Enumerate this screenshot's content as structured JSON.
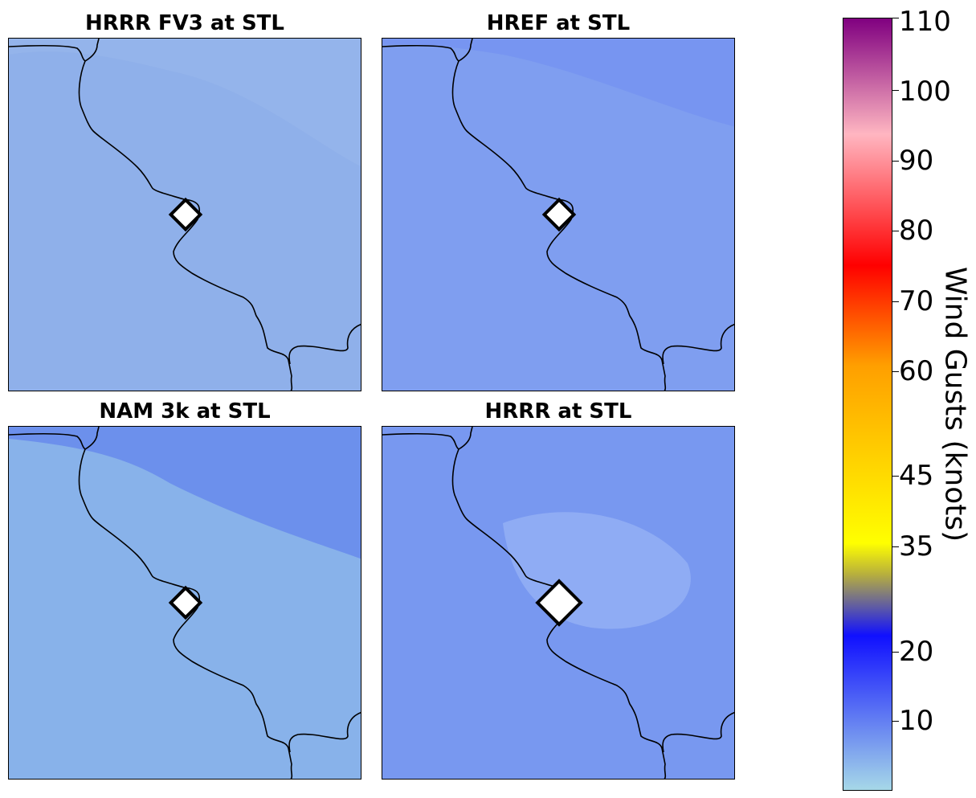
{
  "panels": [
    {
      "title": "HRRR FV3 at STL",
      "base_color": "#8fb0ea",
      "marker_size": "small"
    },
    {
      "title": "HREF at STL",
      "base_color": "#7f9ef0",
      "marker_size": "small"
    },
    {
      "title": "NAM 3k at STL",
      "base_color": "#88b2ea",
      "marker_size": "small"
    },
    {
      "title": "HRRR at STL",
      "base_color": "#7898f0",
      "marker_size": "large"
    }
  ],
  "colorbar": {
    "label": "Wind Gusts (knots)",
    "ticks": [
      "110",
      "100",
      "90",
      "80",
      "70",
      "60",
      "45",
      "35",
      "20",
      "10"
    ],
    "range": [
      0,
      110
    ],
    "colors": {
      "low": "#a6d8e8",
      "blue": "#1010ff",
      "olive": "#b8b03c",
      "yellow": "#ffff00",
      "orange": "#ff9f00",
      "red": "#ff0000",
      "pink": "#ffb6c1",
      "purple": "#800080"
    }
  },
  "marker": {
    "fill": "#ffffff",
    "stroke": "#000000"
  },
  "coastline_color": "#000000"
}
